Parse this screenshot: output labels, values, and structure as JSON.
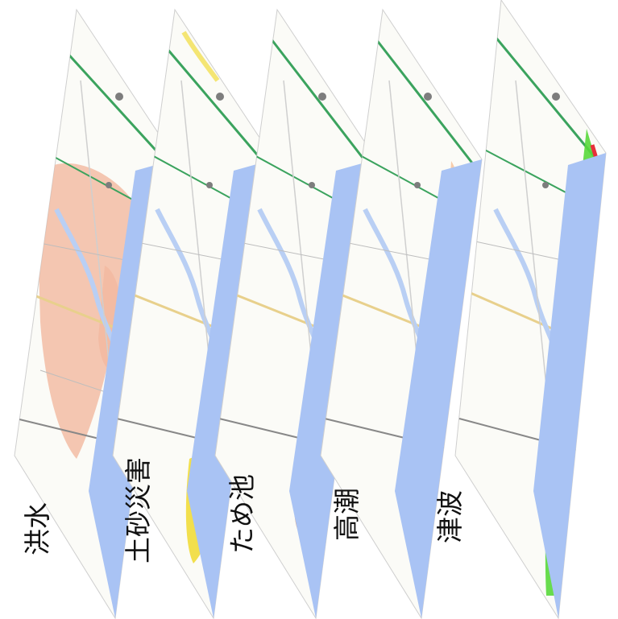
{
  "layers": [
    {
      "id": "flood",
      "label": "洪水",
      "highlight_color": "#f2b49a"
    },
    {
      "id": "landslide",
      "label": "土砂災害",
      "highlight_color": "#f1dc3a"
    },
    {
      "id": "reservoir",
      "label": "ため池",
      "highlight_color": "#e58a4e"
    },
    {
      "id": "storm-surge",
      "label": "高潮",
      "highlight_color": "#f6c39e"
    },
    {
      "id": "tsunami",
      "label": "津波",
      "highlight_color": "#58d83a"
    }
  ],
  "map_colors": {
    "sea": "#a9c3f4",
    "river": "#b9cff4",
    "land": "#fbfbf7",
    "expressway": "#3ba35e",
    "national_road": "#e8d08c",
    "rail": "#888888"
  },
  "tsunami_accent": "#e8303a"
}
